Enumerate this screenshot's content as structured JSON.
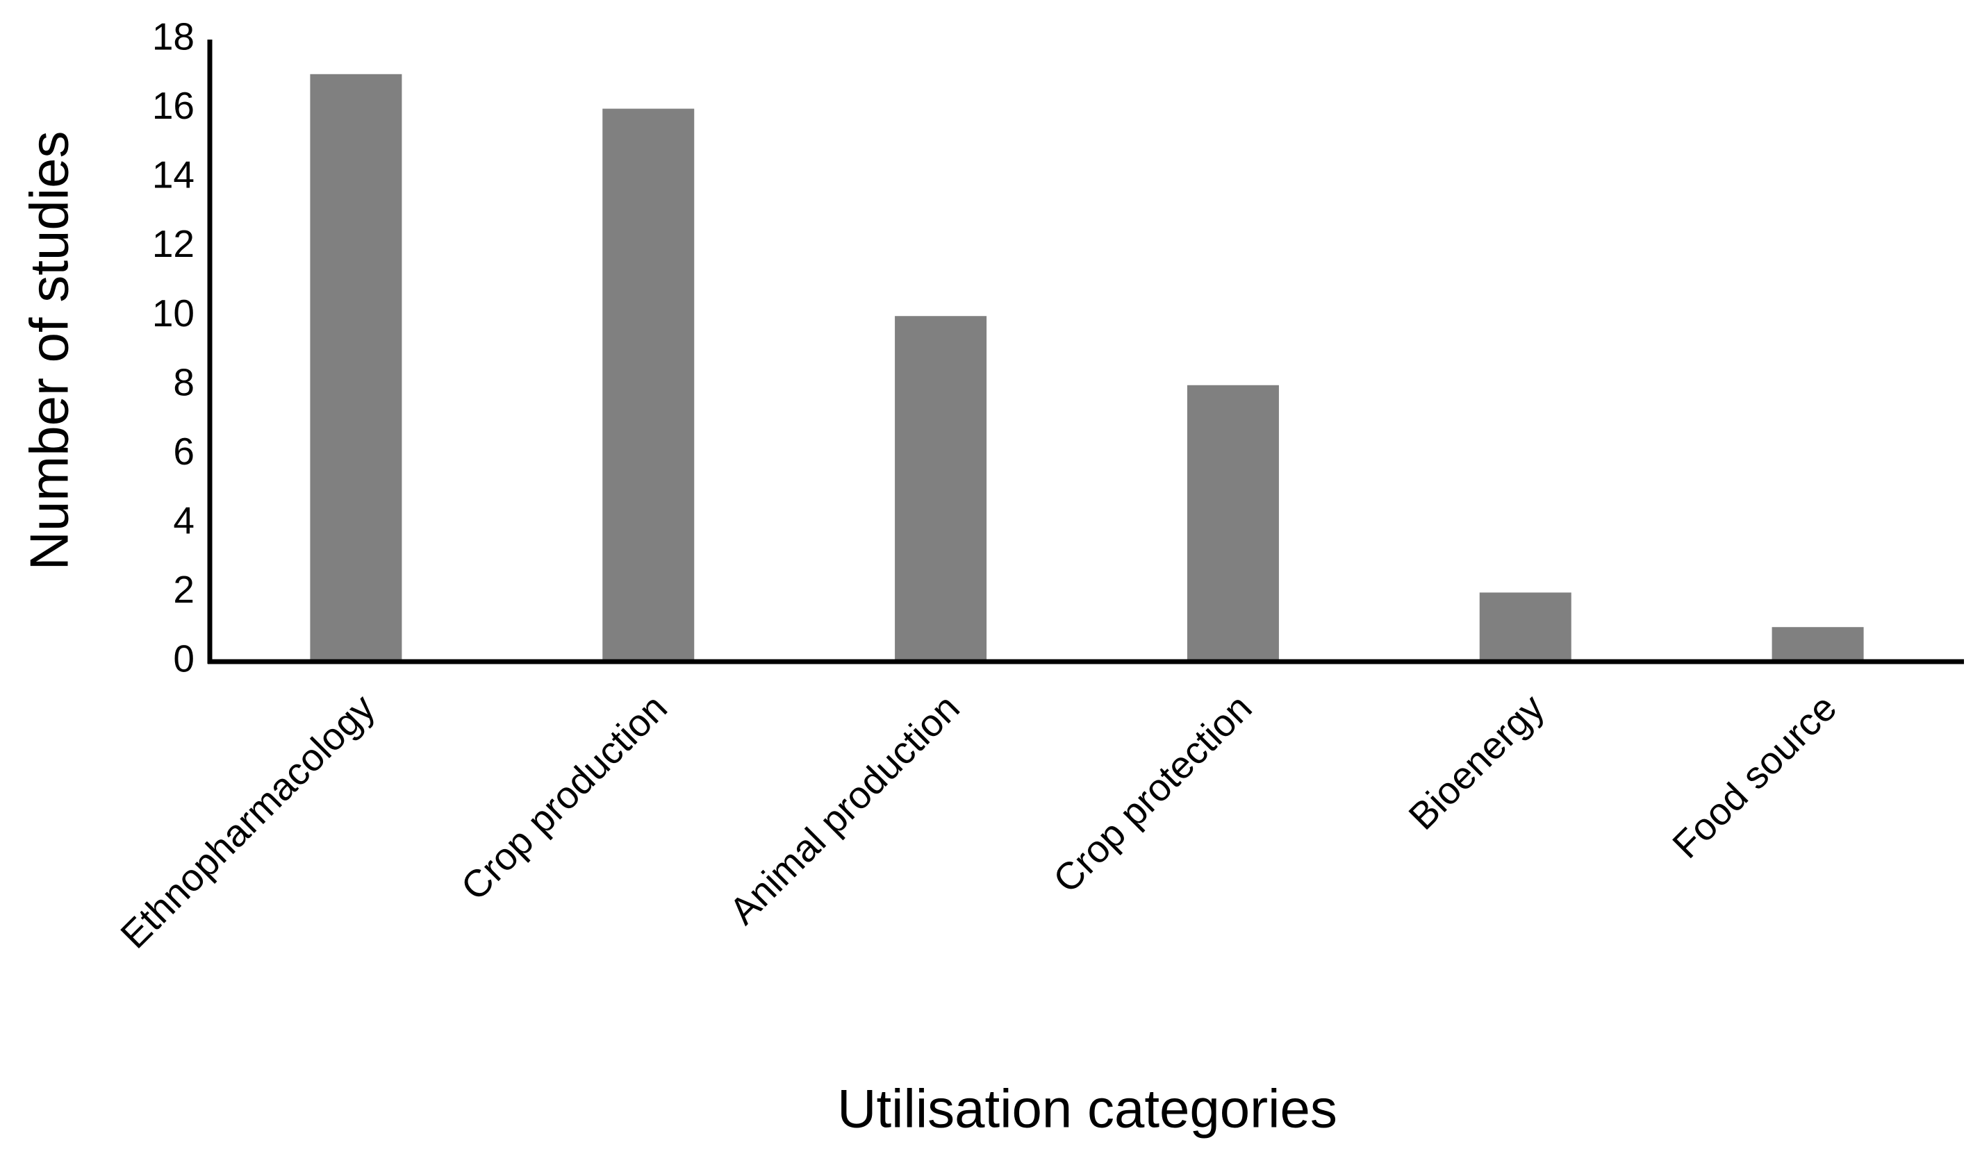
{
  "chart_data": {
    "type": "bar",
    "x_label": "Utilisation categories",
    "y_label": "Number of studies",
    "categories": [
      "Ethnopharmacology",
      "Crop production",
      "Animal production",
      "Crop protection",
      "Bioenergy",
      "Food source"
    ],
    "values": [
      17,
      16,
      10,
      8,
      2,
      1
    ],
    "color": "#808080",
    "ylim": [
      0,
      18
    ],
    "yticks": [
      0,
      2,
      4,
      6,
      8,
      10,
      12,
      14,
      16,
      18
    ],
    "grid": false
  }
}
